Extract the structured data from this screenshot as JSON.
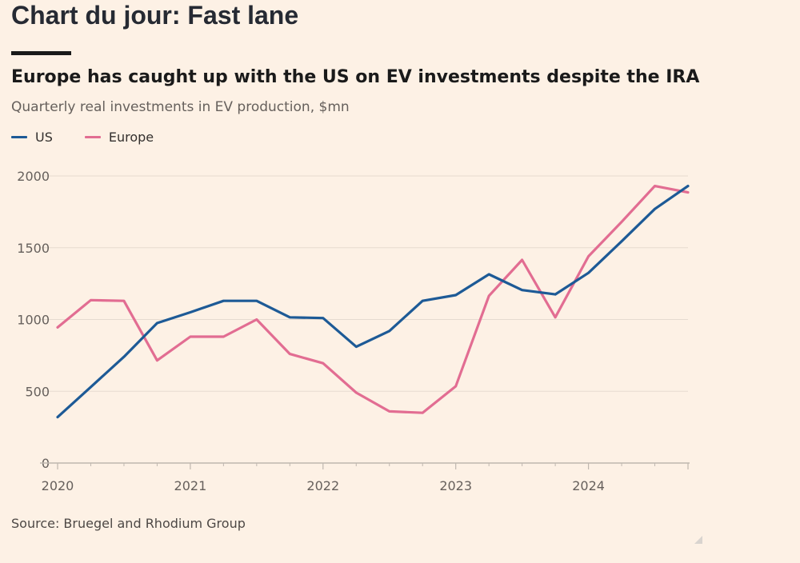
{
  "headline": "Chart du jour: Fast lane",
  "colors": {
    "background": "#fdf1e5",
    "us": "#1d5a96",
    "europe": "#e26d92",
    "grid": "#e6dbd0",
    "axis": "#bfb7af"
  },
  "chart_data": {
    "type": "line",
    "title": "Europe has caught up with the US on EV investments despite the IRA",
    "subtitle": "Quarterly real investments in EV production, $mn",
    "xlabel": "",
    "ylabel": "",
    "ylim": [
      0,
      2000
    ],
    "yticks": [
      0,
      500,
      1000,
      1500,
      2000
    ],
    "xlim": [
      2020,
      2024.75
    ],
    "xticks": [
      2020,
      2021,
      2022,
      2023,
      2024
    ],
    "xtick_labels": [
      "2020",
      "2021",
      "2022",
      "2023",
      "2024"
    ],
    "x": [
      2020,
      2020.25,
      2020.5,
      2020.75,
      2021,
      2021.25,
      2021.5,
      2021.75,
      2022,
      2022.25,
      2022.5,
      2022.75,
      2023,
      2023.25,
      2023.5,
      2023.75,
      2024,
      2024.25,
      2024.5,
      2024.75
    ],
    "series": [
      {
        "name": "US",
        "color": "#1d5a96",
        "values": [
          320,
          530,
          740,
          975,
          1050,
          1130,
          1130,
          1015,
          1010,
          810,
          920,
          1130,
          1170,
          1315,
          1205,
          1175,
          1325,
          1545,
          1770,
          1930
        ]
      },
      {
        "name": "Europe",
        "color": "#e26d92",
        "values": [
          945,
          1135,
          1130,
          715,
          880,
          880,
          1000,
          760,
          695,
          490,
          360,
          350,
          535,
          1165,
          1415,
          1015,
          1440,
          1680,
          1930,
          1885
        ]
      }
    ],
    "legend": [
      "US",
      "Europe"
    ],
    "legend_position": "top-left",
    "grid": true
  },
  "source": "Source: Bruegel and Rhodium Group"
}
